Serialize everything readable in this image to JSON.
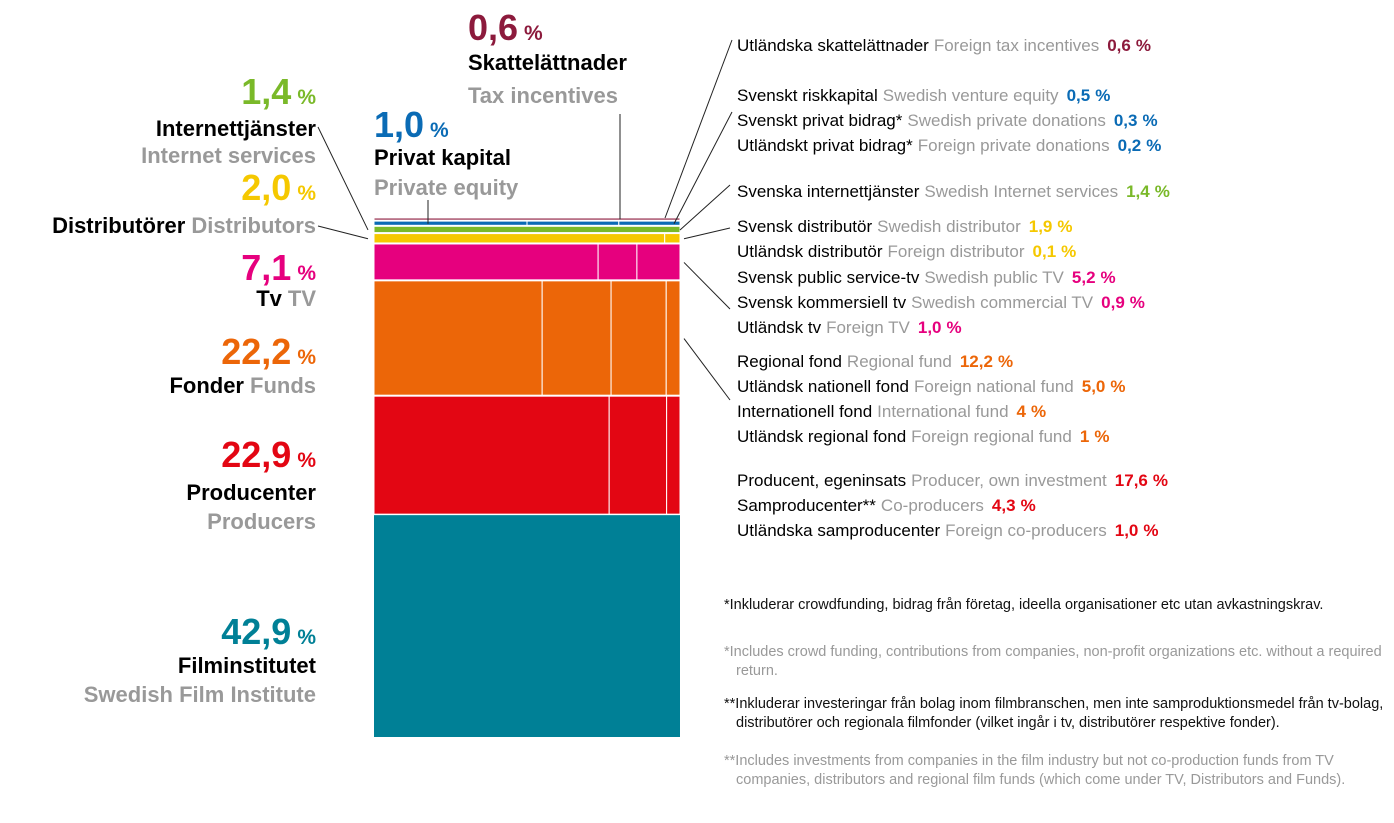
{
  "chart_data": {
    "type": "mosaic",
    "unit": "%",
    "groups": [
      {
        "name": "Skattelättnader",
        "name_en": "Tax incentives",
        "value": 0.6,
        "value_label": "0,6",
        "color": "#8c1a3c",
        "items": [
          {
            "name": "Utländska skattelättnader",
            "name_en": "Foreign tax incentives",
            "value": 0.6,
            "value_label": "0,6"
          }
        ]
      },
      {
        "name": "Privat kapital",
        "name_en": "Private equity",
        "value": 1.0,
        "value_label": "1,0",
        "color": "#0a6bb5",
        "items": [
          {
            "name": "Svenskt riskkapital",
            "name_en": "Swedish venture equity",
            "value": 0.5,
            "value_label": "0,5"
          },
          {
            "name": "Svenskt privat bidrag*",
            "name_en": "Swedish private donations",
            "value": 0.3,
            "value_label": "0,3"
          },
          {
            "name": "Utländskt privat bidrag*",
            "name_en": "Foreign private donations",
            "value": 0.2,
            "value_label": "0,2"
          }
        ]
      },
      {
        "name": "Internettjänster",
        "name_en": "Internet services",
        "value": 1.4,
        "value_label": "1,4",
        "color": "#7ab929",
        "items": [
          {
            "name": "Svenska internettjänster",
            "name_en": "Swedish Internet services",
            "value": 1.4,
            "value_label": "1,4"
          }
        ]
      },
      {
        "name": "Distributörer",
        "name_en": "Distributors",
        "value": 2.0,
        "value_label": "2,0",
        "color": "#f5c800",
        "items": [
          {
            "name": "Svensk distributör",
            "name_en": "Swedish distributor",
            "value": 1.9,
            "value_label": "1,9"
          },
          {
            "name": "Utländsk distributör",
            "name_en": "Foreign distributor",
            "value": 0.1,
            "value_label": "0,1"
          }
        ]
      },
      {
        "name": "Tv",
        "name_en": "TV",
        "value": 7.1,
        "value_label": "7,1",
        "color": "#e6007e",
        "items": [
          {
            "name": "Svensk public service-tv",
            "name_en": "Swedish public TV",
            "value": 5.2,
            "value_label": "5,2"
          },
          {
            "name": "Svensk kommersiell tv",
            "name_en": "Swedish commercial TV",
            "value": 0.9,
            "value_label": "0,9"
          },
          {
            "name": "Utländsk tv",
            "name_en": "Foreign TV",
            "value": 1.0,
            "value_label": "1,0"
          }
        ]
      },
      {
        "name": "Fonder",
        "name_en": "Funds",
        "value": 22.2,
        "value_label": "22,2",
        "color": "#ec6608",
        "items": [
          {
            "name": "Regional fond",
            "name_en": "Regional fund",
            "value": 12.2,
            "value_label": "12,2"
          },
          {
            "name": "Utländsk nationell fond",
            "name_en": "Foreign national fund",
            "value": 5.0,
            "value_label": "5,0"
          },
          {
            "name": "Internationell fond",
            "name_en": "International fund",
            "value": 4,
            "value_label": "4"
          },
          {
            "name": "Utländsk regional fond",
            "name_en": "Foreign regional fund",
            "value": 1,
            "value_label": "1"
          }
        ]
      },
      {
        "name": "Producenter",
        "name_en": "Producers",
        "value": 22.9,
        "value_label": "22,9",
        "color": "#e30613",
        "items": [
          {
            "name": "Producent, egeninsats",
            "name_en": "Producer, own investment",
            "value": 17.6,
            "value_label": "17,6"
          },
          {
            "name": "Samproducenter**",
            "name_en": "Co-producers",
            "value": 4.3,
            "value_label": "4,3"
          },
          {
            "name": "Utländska samproducenter",
            "name_en": "Foreign co-producers",
            "value": 1.0,
            "value_label": "1,0"
          }
        ]
      },
      {
        "name": "Filminstitutet",
        "name_en": "Swedish Film Institute",
        "value": 42.9,
        "value_label": "42,9",
        "color": "#008096",
        "items": []
      }
    ],
    "footnotes": [
      "*Inkluderar crowdfunding, bidrag från företag, ideella organisationer etc utan avkastningskrav.",
      "*Includes crowd funding, contributions from companies, non-profit organizations etc. without a required return.",
      "**Inkluderar investeringar från bolag inom filmbranschen, men inte samproduktionsmedel från tv-bolag, distributörer och regionala filmfonder (vilket ingår i tv, distributörer respektive fonder).",
      "**Includes investments from companies in the film industry but not co-production funds from TV companies, distributors and regional film funds (which come under TV, Distributors and Funds)."
    ]
  }
}
